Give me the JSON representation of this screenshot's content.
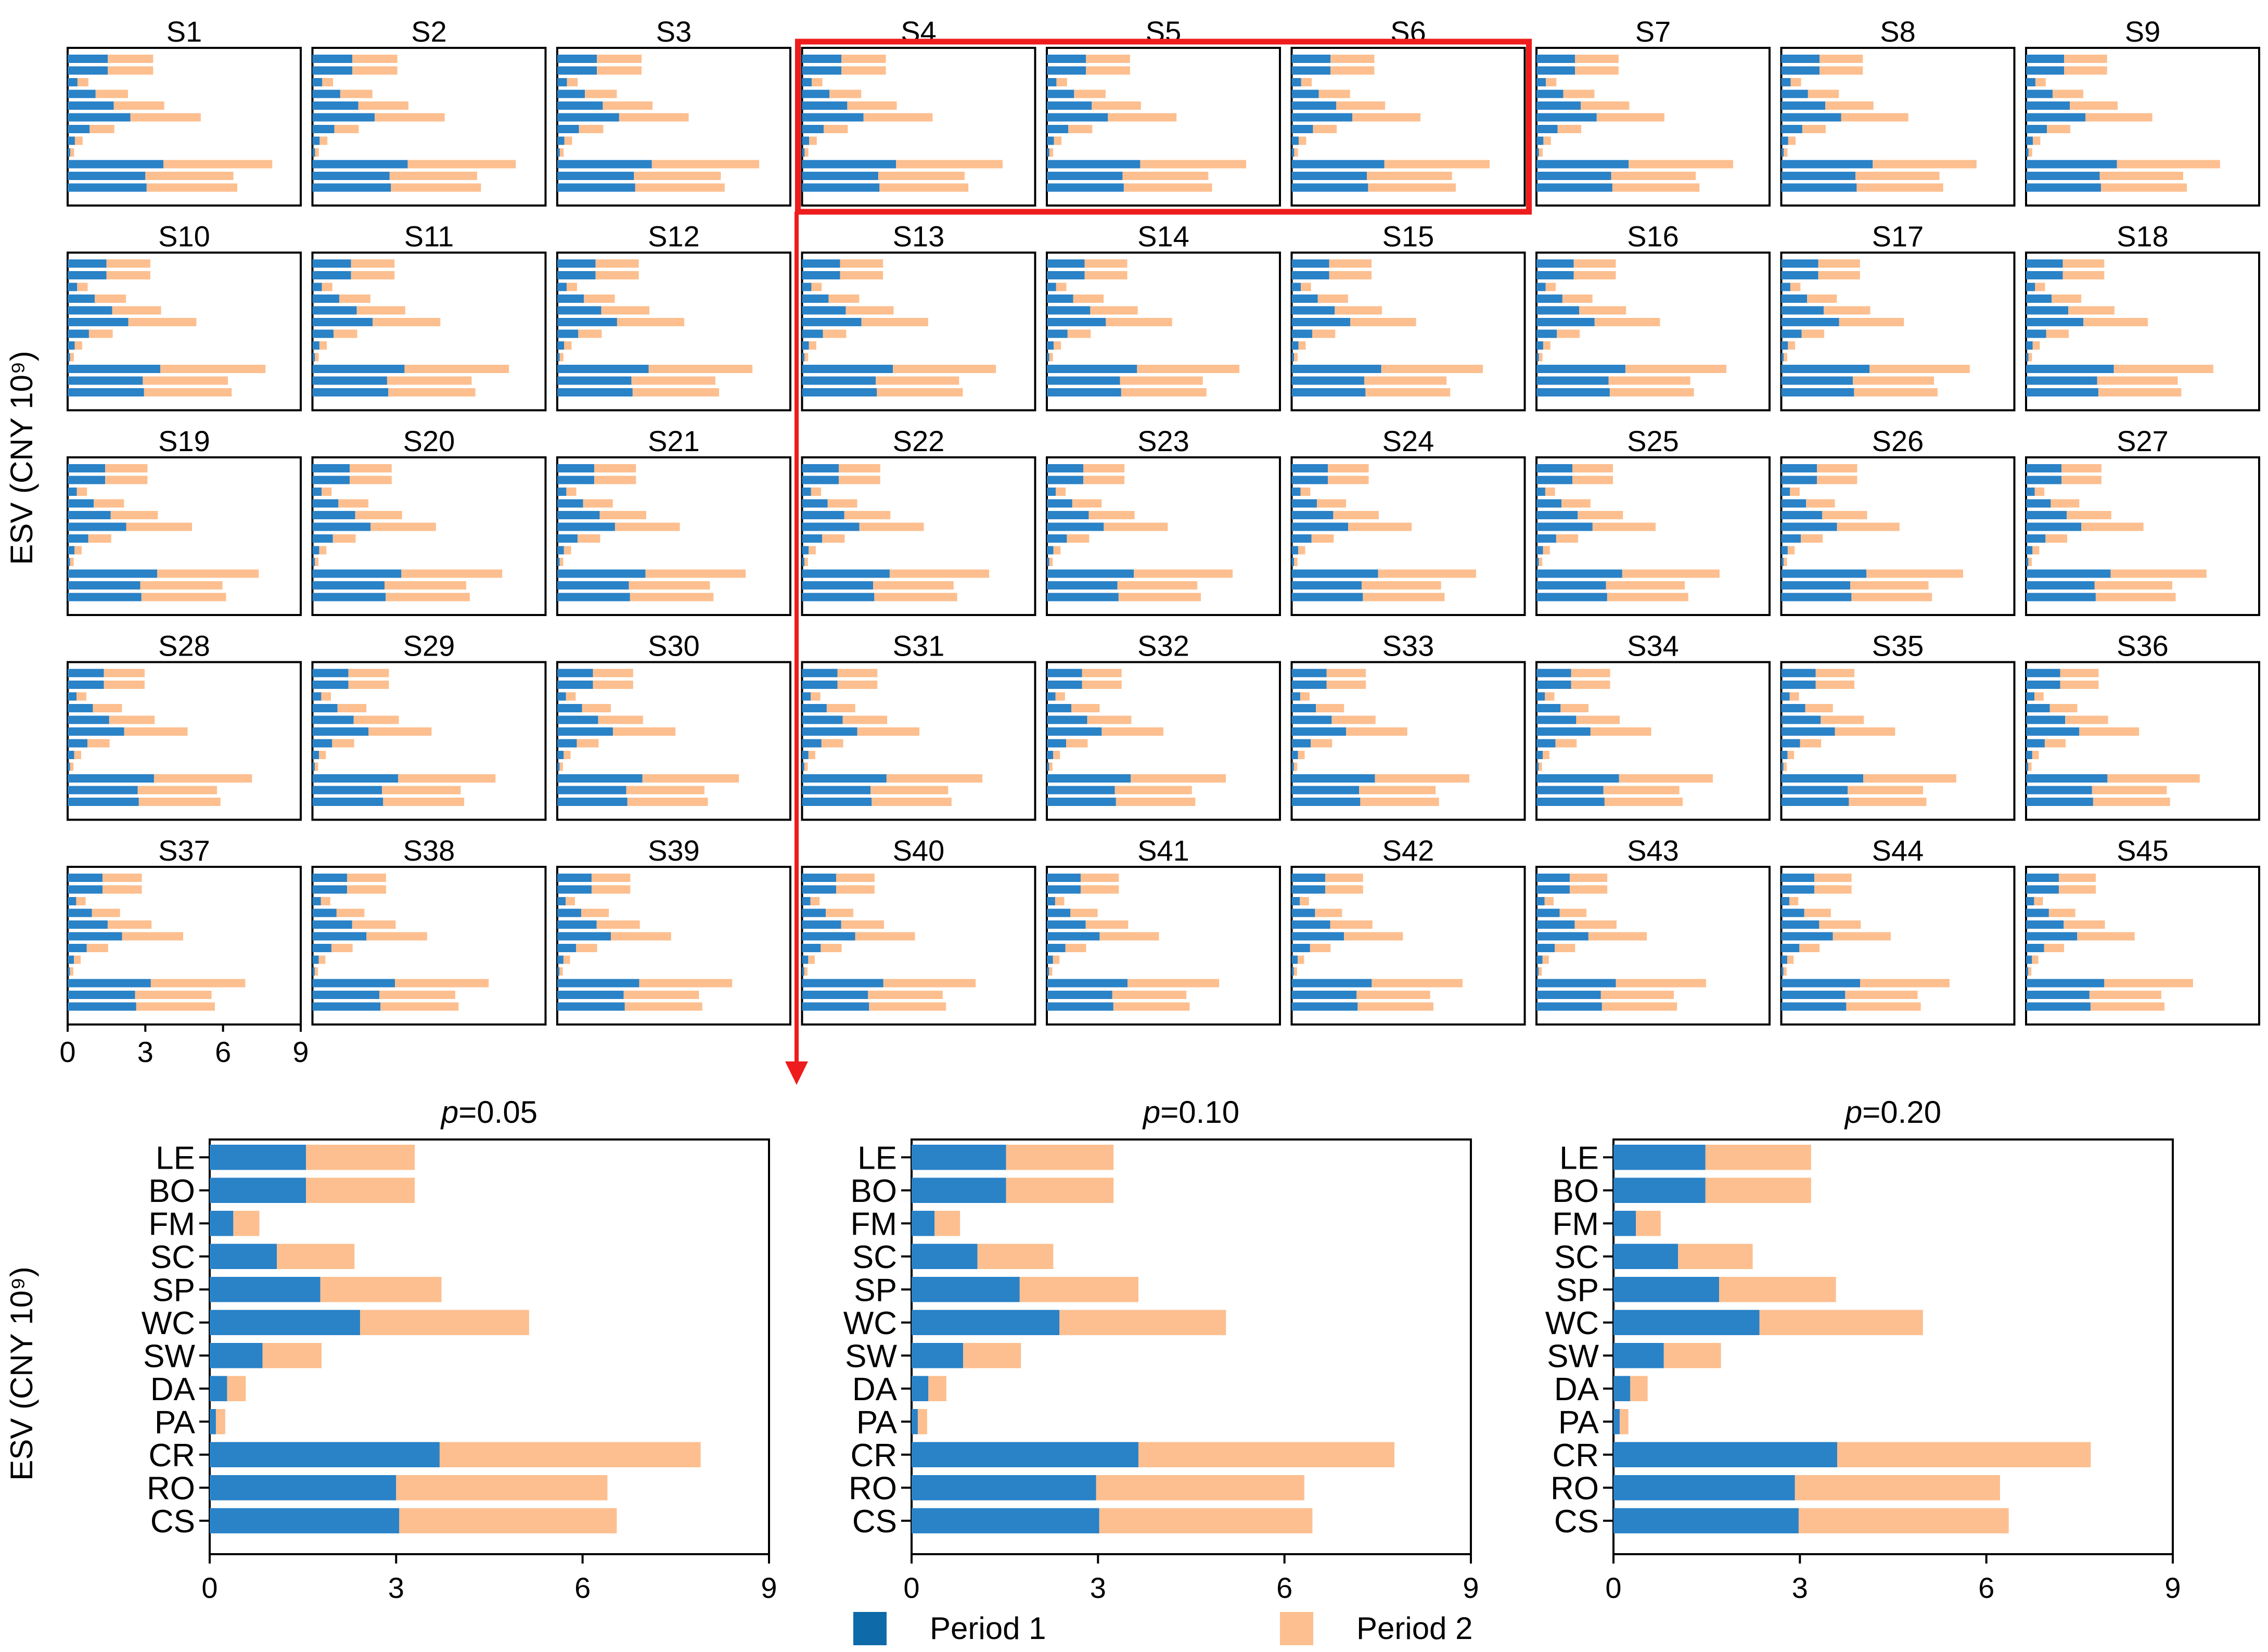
{
  "colors": {
    "period1": "#2a82c7",
    "period2": "#fdbf8f",
    "highlight": "#ee1c1c",
    "legend_period1": "#0e6aa8",
    "legend_period2": "#fdbf8f"
  },
  "legend": {
    "period1": "Period 1",
    "period2": "Period 2"
  },
  "ylabel": "ESV (CNY 10⁹)",
  "small_multiples": {
    "titles": [
      "S1",
      "S2",
      "S3",
      "S4",
      "S5",
      "S6",
      "S7",
      "S8",
      "S9",
      "S10",
      "S11",
      "S12",
      "S13",
      "S14",
      "S15",
      "S16",
      "S17",
      "S18",
      "S19",
      "S20",
      "S21",
      "S22",
      "S23",
      "S24",
      "S25",
      "S26",
      "S27",
      "S28",
      "S29",
      "S30",
      "S31",
      "S32",
      "S33",
      "S34",
      "S35",
      "S36",
      "S37",
      "S38",
      "S39",
      "S40",
      "S41",
      "S42",
      "S43",
      "S44",
      "S45"
    ],
    "highlighted": [
      "S4",
      "S5",
      "S6"
    ],
    "xticks": [
      "0",
      "3",
      "6",
      "9"
    ]
  },
  "chart_data": [
    {
      "type": "bar",
      "orientation": "horizontal",
      "stacked": true,
      "title": "p=0.05",
      "title_italic": "p",
      "title_rest": "=0.05",
      "categories": [
        "LE",
        "BO",
        "FM",
        "SC",
        "SP",
        "WC",
        "SW",
        "DA",
        "PA",
        "CR",
        "RO",
        "CS"
      ],
      "series": [
        {
          "name": "Period 1",
          "values": [
            1.55,
            1.55,
            0.38,
            1.08,
            1.78,
            2.42,
            0.85,
            0.28,
            0.1,
            3.7,
            3.0,
            3.05
          ]
        },
        {
          "name": "Period 2",
          "values": [
            1.75,
            1.75,
            0.42,
            1.25,
            1.95,
            2.72,
            0.95,
            0.3,
            0.15,
            4.2,
            3.4,
            3.5
          ]
        }
      ],
      "xlim": [
        0,
        9
      ],
      "xticks": [
        "0",
        "3",
        "6",
        "9"
      ],
      "xlabel": "",
      "ylabel": "ESV (CNY 10⁹)"
    },
    {
      "type": "bar",
      "orientation": "horizontal",
      "stacked": true,
      "title": "p=0.10",
      "title_italic": "p",
      "title_rest": "=0.10",
      "categories": [
        "LE",
        "BO",
        "FM",
        "SC",
        "SP",
        "WC",
        "SW",
        "DA",
        "PA",
        "CR",
        "RO",
        "CS"
      ],
      "series": [
        {
          "name": "Period 1",
          "values": [
            1.52,
            1.52,
            0.37,
            1.06,
            1.74,
            2.38,
            0.83,
            0.27,
            0.1,
            3.65,
            2.97,
            3.02
          ]
        },
        {
          "name": "Period 2",
          "values": [
            1.73,
            1.73,
            0.41,
            1.22,
            1.91,
            2.68,
            0.93,
            0.29,
            0.15,
            4.12,
            3.35,
            3.43
          ]
        }
      ],
      "xlim": [
        0,
        9
      ],
      "xticks": [
        "0",
        "3",
        "6",
        "9"
      ],
      "xlabel": "",
      "ylabel": ""
    },
    {
      "type": "bar",
      "orientation": "horizontal",
      "stacked": true,
      "title": "p=0.20",
      "title_italic": "p",
      "title_rest": "=0.20",
      "categories": [
        "LE",
        "BO",
        "FM",
        "SC",
        "SP",
        "WC",
        "SW",
        "DA",
        "PA",
        "CR",
        "RO",
        "CS"
      ],
      "series": [
        {
          "name": "Period 1",
          "values": [
            1.48,
            1.48,
            0.36,
            1.04,
            1.7,
            2.35,
            0.81,
            0.27,
            0.1,
            3.6,
            2.92,
            2.98
          ]
        },
        {
          "name": "Period 2",
          "values": [
            1.7,
            1.7,
            0.4,
            1.2,
            1.88,
            2.63,
            0.92,
            0.28,
            0.14,
            4.08,
            3.3,
            3.38
          ]
        }
      ],
      "xlim": [
        0,
        9
      ],
      "xticks": [
        "0",
        "3",
        "6",
        "9"
      ],
      "xlabel": "",
      "ylabel": ""
    }
  ]
}
